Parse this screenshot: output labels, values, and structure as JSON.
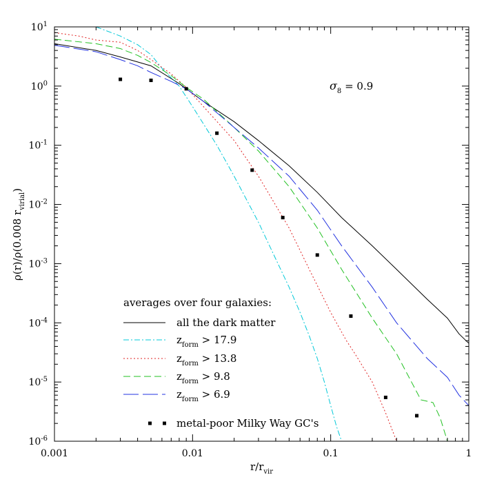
{
  "chart_data": {
    "type": "line",
    "xscale": "log",
    "yscale": "log",
    "xlim": [
      0.001,
      1
    ],
    "ylim": [
      1e-06,
      10
    ],
    "grid": false,
    "xlabel": {
      "base": "r/r",
      "sub": "vir"
    },
    "ylabel": {
      "main": "ρ(r)/ρ(0.008 r",
      "sub": "virial",
      "close": ")"
    },
    "x_ticks": [
      {
        "v": 0.001,
        "label": "0.001"
      },
      {
        "v": 0.01,
        "label": "0.01"
      },
      {
        "v": 0.1,
        "label": "0.1"
      },
      {
        "v": 1,
        "label": "1"
      }
    ],
    "y_ticks": [
      {
        "exp": 1,
        "label_base": "10",
        "label_exp": "1"
      },
      {
        "exp": 0,
        "label_base": "10",
        "label_exp": "0"
      },
      {
        "exp": -1,
        "label_base": "10",
        "label_exp": "-1"
      },
      {
        "exp": -2,
        "label_base": "10",
        "label_exp": "-2"
      },
      {
        "exp": -3,
        "label_base": "10",
        "label_exp": "-3"
      },
      {
        "exp": -4,
        "label_base": "10",
        "label_exp": "-4"
      },
      {
        "exp": -5,
        "label_base": "10",
        "label_exp": "-5"
      },
      {
        "exp": -6,
        "label_base": "10",
        "label_exp": "-6"
      }
    ],
    "annotation": {
      "symbol": "σ",
      "sub": "8",
      "text": " = 0.9"
    },
    "legend_title": "averages over four galaxies:",
    "legend_position": "bottom-left",
    "series": [
      {
        "id": "dm",
        "name": "all the dark matter",
        "name_sub": "",
        "name_rest": "",
        "color": "#000000",
        "dash": "none",
        "x": [
          0.001,
          0.002,
          0.003,
          0.005,
          0.008,
          0.012,
          0.02,
          0.03,
          0.05,
          0.08,
          0.12,
          0.2,
          0.3,
          0.5,
          0.7,
          0.85,
          1.0
        ],
        "y": [
          5.2,
          4.0,
          3.1,
          2.2,
          1.1,
          0.55,
          0.25,
          0.12,
          0.045,
          0.016,
          0.006,
          0.002,
          0.0008,
          0.00025,
          0.00012,
          6.5e-05,
          4.5e-05
        ]
      },
      {
        "id": "z179",
        "name": "z",
        "name_sub": "form",
        "name_rest": " > 17.9",
        "color": "#00c8d8",
        "dash": "8,3,2,3",
        "x": [
          0.002,
          0.003,
          0.004,
          0.005,
          0.006,
          0.008,
          0.01,
          0.015,
          0.02,
          0.03,
          0.04,
          0.05,
          0.06,
          0.07,
          0.08,
          0.09,
          0.1,
          0.11,
          0.12
        ],
        "y": [
          10,
          7,
          5,
          3.4,
          2.0,
          1.0,
          0.45,
          0.1,
          0.03,
          0.005,
          0.0012,
          0.0004,
          0.00015,
          6e-05,
          2.5e-05,
          1e-05,
          4e-06,
          1.8e-06,
          1e-06
        ]
      },
      {
        "id": "z138",
        "name": "z",
        "name_sub": "form",
        "name_rest": " > 13.8",
        "color": "#e02020",
        "dash": "2,3",
        "x": [
          0.001,
          0.0015,
          0.002,
          0.003,
          0.004,
          0.005,
          0.007,
          0.009,
          0.012,
          0.02,
          0.03,
          0.05,
          0.07,
          0.1,
          0.13,
          0.15,
          0.2,
          0.25,
          0.3
        ],
        "y": [
          8,
          7,
          6,
          5.5,
          4,
          2.8,
          1.6,
          0.95,
          0.45,
          0.12,
          0.03,
          0.004,
          0.0008,
          0.00015,
          5e-05,
          3e-05,
          1e-05,
          3e-06,
          1e-06
        ]
      },
      {
        "id": "z98",
        "name": "z",
        "name_sub": "form",
        "name_rest": " > 9.8",
        "color": "#20c020",
        "dash": "10,5",
        "x": [
          0.001,
          0.002,
          0.003,
          0.004,
          0.005,
          0.007,
          0.009,
          0.012,
          0.02,
          0.03,
          0.05,
          0.08,
          0.12,
          0.2,
          0.3,
          0.45,
          0.55,
          0.62,
          0.7
        ],
        "y": [
          6.2,
          5.2,
          4.3,
          3.3,
          2.5,
          1.5,
          0.95,
          0.6,
          0.2,
          0.08,
          0.02,
          0.004,
          0.0008,
          0.00012,
          3e-05,
          5e-06,
          4.5e-06,
          2.5e-06,
          1e-06
        ]
      },
      {
        "id": "z69",
        "name": "z",
        "name_sub": "form",
        "name_rest": " > 6.9",
        "color": "#2030e0",
        "dash": "22,6",
        "x": [
          0.001,
          0.002,
          0.003,
          0.004,
          0.005,
          0.007,
          0.009,
          0.012,
          0.02,
          0.03,
          0.05,
          0.08,
          0.12,
          0.2,
          0.3,
          0.5,
          0.7,
          0.85,
          1.0
        ],
        "y": [
          4.9,
          3.8,
          2.8,
          2.2,
          1.7,
          1.2,
          0.9,
          0.55,
          0.2,
          0.09,
          0.03,
          0.008,
          0.002,
          0.0004,
          0.0001,
          2.5e-05,
          1.2e-05,
          6e-06,
          4e-06
        ]
      },
      {
        "id": "gc",
        "name": "metal-poor Milky Way GC's",
        "name_sub": "",
        "name_rest": "",
        "color": "#000000",
        "marker": "square",
        "x": [
          0.003,
          0.005,
          0.009,
          0.015,
          0.027,
          0.045,
          0.08,
          0.14,
          0.25,
          0.42
        ],
        "y": [
          1.3,
          1.25,
          0.9,
          0.16,
          0.038,
          0.006,
          0.0014,
          0.00013,
          5.5e-06,
          2.7e-06
        ]
      }
    ]
  }
}
